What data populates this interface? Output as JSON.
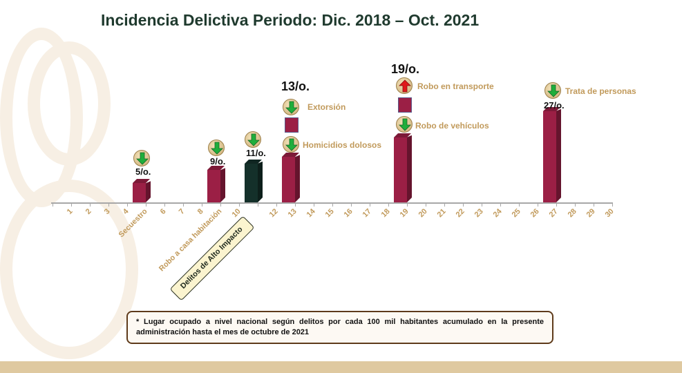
{
  "title": "Incidencia Delictiva Periodo: Dic. 2018 – Oct. 2021",
  "chart_data": {
    "type": "bar",
    "x_range": [
      1,
      30
    ],
    "tick_labels": [
      "1",
      "2",
      "3",
      "4",
      "Secuestro",
      "6",
      "7",
      "8",
      "Robo a casa habitación",
      "10",
      "Delitos de Alto Impacto",
      "12",
      "13",
      "14",
      "15",
      "16",
      "17",
      "18",
      "19",
      "20",
      "21",
      "22",
      "23",
      "24",
      "25",
      "26",
      "27",
      "28",
      "29",
      "30"
    ],
    "highlighted_label_index": 10,
    "bars": [
      {
        "position": 5,
        "value": 5,
        "label": "5/o.",
        "color": "#9b1f45"
      },
      {
        "position": 9,
        "value": 9,
        "label": "9/o.",
        "color": "#9b1f45"
      },
      {
        "position": 11,
        "value": 11,
        "label": "11/o.",
        "color": "#14302a"
      },
      {
        "position": 13,
        "value": 13,
        "label": "13/o.",
        "color": "#9b1f45"
      },
      {
        "position": 19,
        "value": 19,
        "label": "19/o.",
        "color": "#9b1f45"
      },
      {
        "position": 27,
        "value": 27,
        "label": "27/o.",
        "color": "#9b1f45"
      }
    ],
    "annotations": [
      {
        "position": 5,
        "trend": "down"
      },
      {
        "position": 9,
        "trend": "down"
      },
      {
        "position": 11,
        "trend": "down"
      },
      {
        "position": 13,
        "label": "Extorsión",
        "trend": "down"
      },
      {
        "position": 13,
        "label": "Homicidios dolosos",
        "trend": "down"
      },
      {
        "position": 19,
        "label": "Robo en transporte",
        "trend": "up"
      },
      {
        "position": 19,
        "label": "Robo de vehículos",
        "trend": "down"
      },
      {
        "position": 27,
        "label": "Trata de personas",
        "trend": "down"
      }
    ],
    "colors": {
      "bar": "#9b1f45",
      "highlight_bar": "#14302a",
      "down_arrow": "#1fae3c",
      "up_arrow": "#e0191a",
      "label": "#c19a5b"
    }
  },
  "footnote": "* Lugar ocupado a nivel nacional según delitos por cada 100 mil habitantes acumulado en la presente administración hasta el mes de octubre de 2021"
}
